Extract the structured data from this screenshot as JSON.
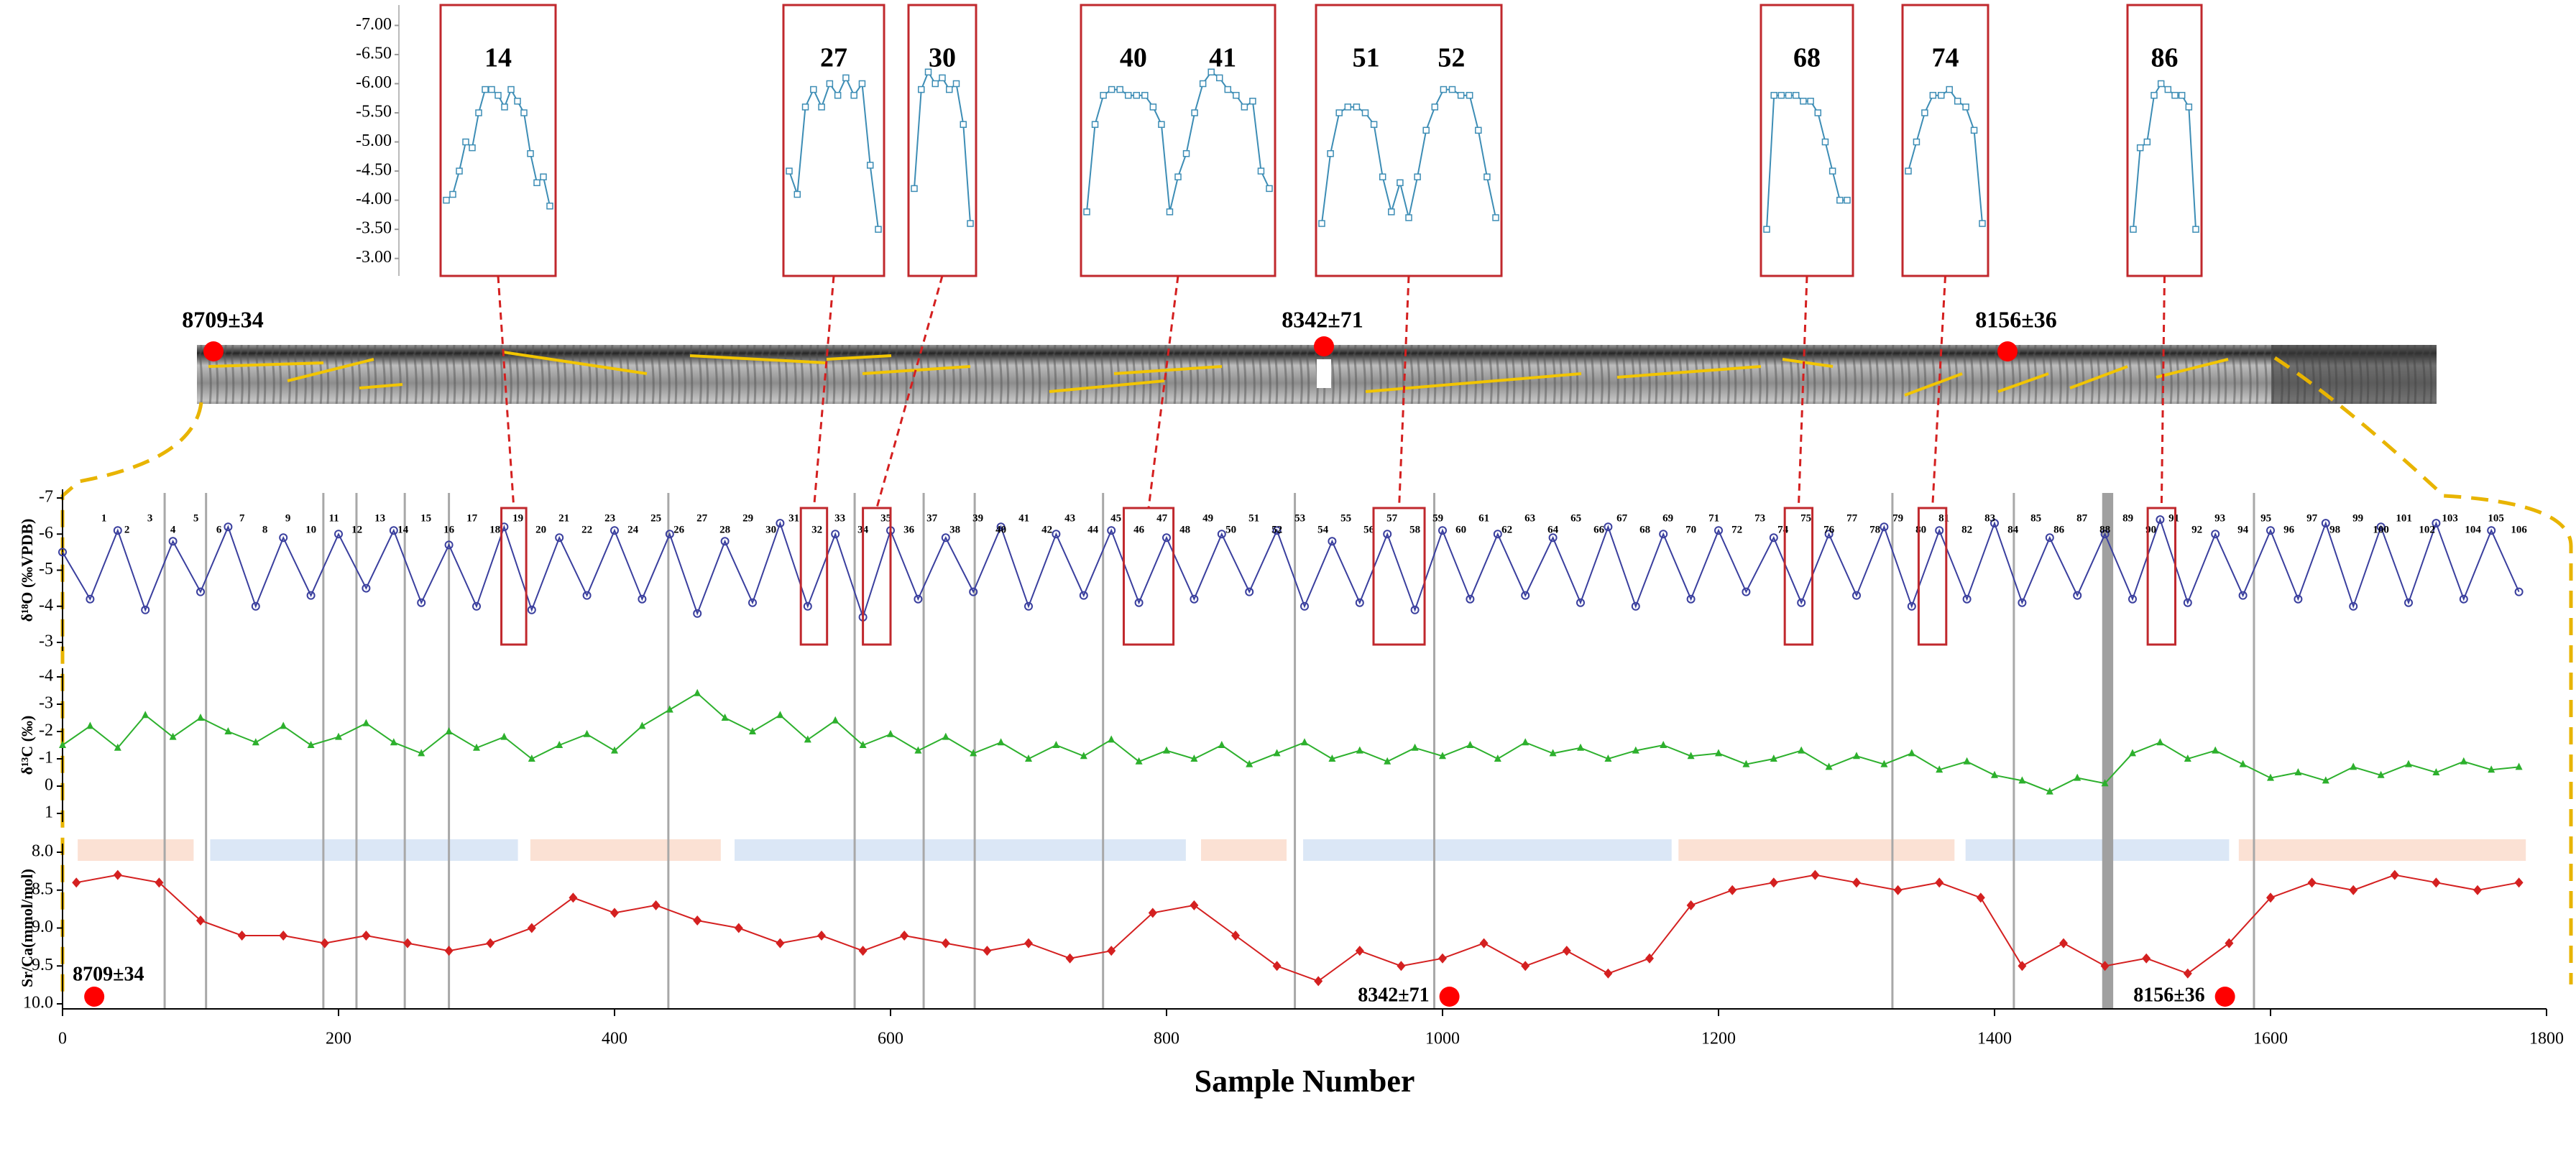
{
  "chart_data": [
    {
      "type": "line",
      "ylabel": "δ¹⁸O (‰VPDB)",
      "ylim": [
        -7,
        -3
      ],
      "y_inverted": true,
      "yticks": [
        -7,
        -6,
        -5,
        -4,
        -3
      ],
      "series": [
        {
          "color": "#3a3f9e",
          "marker": "circle",
          "x": [
            0,
            20,
            40,
            60,
            80,
            100,
            120,
            140,
            160,
            180,
            200,
            220,
            240,
            260,
            280,
            300,
            320,
            340,
            360,
            380,
            400,
            420,
            440,
            460,
            480,
            500,
            520,
            540,
            560,
            580,
            600,
            620,
            640,
            660,
            680,
            700,
            720,
            740,
            760,
            780,
            800,
            820,
            840,
            860,
            880,
            900,
            920,
            940,
            960,
            980,
            1000,
            1020,
            1040,
            1060,
            1080,
            1100,
            1120,
            1140,
            1160,
            1180,
            1200,
            1220,
            1240,
            1260,
            1280,
            1300,
            1320,
            1340,
            1360,
            1380,
            1400,
            1420,
            1440,
            1460,
            1480,
            1500,
            1520,
            1540,
            1560,
            1580,
            1600,
            1620,
            1640,
            1660,
            1680,
            1700,
            1720,
            1740,
            1760,
            1780
          ],
          "values": [
            -5.5,
            -4.2,
            -6.1,
            -3.9,
            -5.8,
            -4.4,
            -6.2,
            -4.0,
            -5.9,
            -4.3,
            -6.0,
            -4.5,
            -6.1,
            -4.1,
            -5.7,
            -4.0,
            -6.2,
            -3.9,
            -5.9,
            -4.3,
            -6.1,
            -4.2,
            -6.0,
            -3.8,
            -5.8,
            -4.1,
            -6.3,
            -4.0,
            -6.0,
            -3.7,
            -6.1,
            -4.2,
            -5.9,
            -4.4,
            -6.2,
            -4.0,
            -6.0,
            -4.3,
            -6.1,
            -4.1,
            -5.9,
            -4.2,
            -6.0,
            -4.4,
            -6.1,
            -4.0,
            -5.8,
            -4.1,
            -6.0,
            -3.9,
            -6.1,
            -4.2,
            -6.0,
            -4.3,
            -5.9,
            -4.1,
            -6.2,
            -4.0,
            -6.0,
            -4.2,
            -6.1,
            -4.4,
            -5.9,
            -4.1,
            -6.0,
            -4.3,
            -6.2,
            -4.0,
            -6.1,
            -4.2,
            -6.3,
            -4.1,
            -5.9,
            -4.3,
            -6.0,
            -4.2,
            -6.4,
            -4.1,
            -6.0,
            -4.3,
            -6.1,
            -4.2,
            -6.3,
            -4.0,
            -6.2,
            -4.1,
            -6.3,
            -4.2,
            -6.1,
            -4.4
          ]
        }
      ],
      "band_labels": [
        "1",
        "2",
        "3",
        "4",
        "5",
        "6",
        "7",
        "8",
        "9",
        "10",
        "11",
        "12",
        "13",
        "14",
        "15",
        "16",
        "17",
        "18",
        "19",
        "20",
        "21",
        "22",
        "23",
        "24",
        "25",
        "26",
        "27",
        "28",
        "29",
        "30",
        "31",
        "32",
        "33",
        "34",
        "35",
        "36",
        "37",
        "38",
        "39",
        "40",
        "41",
        "42",
        "43",
        "44",
        "45",
        "46",
        "47",
        "48",
        "49",
        "50",
        "51",
        "52",
        "53",
        "54",
        "55",
        "56",
        "57",
        "58",
        "59",
        "60",
        "61",
        "62",
        "63",
        "64",
        "65",
        "66",
        "67",
        "68",
        "69",
        "70",
        "71",
        "72",
        "73",
        "74",
        "75",
        "76",
        "77",
        "78",
        "79",
        "80",
        "81",
        "82",
        "83",
        "84",
        "85",
        "86",
        "87",
        "88",
        "89",
        "90",
        "91",
        "92",
        "93",
        "94",
        "95",
        "96",
        "97",
        "98",
        "99",
        "100",
        "101",
        "102",
        "103",
        "104",
        "105",
        "106"
      ]
    },
    {
      "type": "line",
      "ylabel": "δ¹³C (‰)",
      "ylim": [
        -4,
        1
      ],
      "y_inverted": true,
      "yticks": [
        1,
        0,
        -1,
        -2,
        -3,
        -4
      ],
      "series": [
        {
          "color": "#2db02d",
          "marker": "triangle",
          "x": [
            0,
            20,
            40,
            60,
            80,
            100,
            120,
            140,
            160,
            180,
            200,
            220,
            240,
            260,
            280,
            300,
            320,
            340,
            360,
            380,
            400,
            420,
            440,
            460,
            480,
            500,
            520,
            540,
            560,
            580,
            600,
            620,
            640,
            660,
            680,
            700,
            720,
            740,
            760,
            780,
            800,
            820,
            840,
            860,
            880,
            900,
            920,
            940,
            960,
            980,
            1000,
            1020,
            1040,
            1060,
            1080,
            1100,
            1120,
            1140,
            1160,
            1180,
            1200,
            1220,
            1240,
            1260,
            1280,
            1300,
            1320,
            1340,
            1360,
            1380,
            1400,
            1420,
            1440,
            1460,
            1480,
            1500,
            1520,
            1540,
            1560,
            1580,
            1600,
            1620,
            1640,
            1660,
            1680,
            1700,
            1720,
            1740,
            1760,
            1780
          ],
          "values": [
            -1.5,
            -2.2,
            -1.4,
            -2.6,
            -1.8,
            -2.5,
            -2.0,
            -1.6,
            -2.2,
            -1.5,
            -1.8,
            -2.3,
            -1.6,
            -1.2,
            -2.0,
            -1.4,
            -1.8,
            -1.0,
            -1.5,
            -1.9,
            -1.3,
            -2.2,
            -2.8,
            -3.4,
            -2.5,
            -2.0,
            -2.6,
            -1.7,
            -2.4,
            -1.5,
            -1.9,
            -1.3,
            -1.8,
            -1.2,
            -1.6,
            -1.0,
            -1.5,
            -1.1,
            -1.7,
            -0.9,
            -1.3,
            -1.0,
            -1.5,
            -0.8,
            -1.2,
            -1.6,
            -1.0,
            -1.3,
            -0.9,
            -1.4,
            -1.1,
            -1.5,
            -1.0,
            -1.6,
            -1.2,
            -1.4,
            -1.0,
            -1.3,
            -1.5,
            -1.1,
            -1.2,
            -0.8,
            -1.0,
            -1.3,
            -0.7,
            -1.1,
            -0.8,
            -1.2,
            -0.6,
            -0.9,
            -0.4,
            -0.2,
            0.2,
            -0.3,
            -0.1,
            -1.2,
            -1.6,
            -1.0,
            -1.3,
            -0.8,
            -0.3,
            -0.5,
            -0.2,
            -0.7,
            -0.4,
            -0.8,
            -0.5,
            -0.9,
            -0.6,
            -0.7
          ]
        }
      ]
    },
    {
      "type": "line",
      "ylabel": "Sr/Ca(mmol/mol)",
      "ylim": [
        8,
        10
      ],
      "y_inverted": true,
      "yticks": [
        {
          "value": 8,
          "label": "8.0"
        },
        8.5,
        {
          "value": 9,
          "label": "9.0"
        },
        9.5,
        {
          "value": 10,
          "label": "10.0"
        }
      ],
      "xlabel": "Sample Number",
      "xlim": [
        0,
        1800
      ],
      "xticks": [
        0,
        200,
        400,
        600,
        800,
        1000,
        1200,
        1400,
        1600,
        1800
      ],
      "series": [
        {
          "color": "#d42020",
          "marker": "diamond",
          "x": [
            10,
            40,
            70,
            100,
            130,
            160,
            190,
            220,
            250,
            280,
            310,
            340,
            370,
            400,
            430,
            460,
            490,
            520,
            550,
            580,
            610,
            640,
            670,
            700,
            730,
            760,
            790,
            820,
            850,
            880,
            910,
            940,
            970,
            1000,
            1030,
            1060,
            1090,
            1120,
            1150,
            1180,
            1210,
            1240,
            1270,
            1300,
            1330,
            1360,
            1390,
            1420,
            1450,
            1480,
            1510,
            1540,
            1570,
            1600,
            1630,
            1660,
            1690,
            1720,
            1750,
            1780
          ],
          "values": [
            8.4,
            8.3,
            8.4,
            8.9,
            9.1,
            9.1,
            9.2,
            9.1,
            9.2,
            9.3,
            9.2,
            9.0,
            8.6,
            8.8,
            8.7,
            8.9,
            9.0,
            9.2,
            9.1,
            9.3,
            9.1,
            9.2,
            9.3,
            9.2,
            9.4,
            9.3,
            8.8,
            8.7,
            9.1,
            9.5,
            9.7,
            9.3,
            9.5,
            9.4,
            9.2,
            9.5,
            9.3,
            9.6,
            9.4,
            8.7,
            8.5,
            8.4,
            8.3,
            8.4,
            8.5,
            8.4,
            8.6,
            9.5,
            9.2,
            9.5,
            9.4,
            9.6,
            9.2,
            8.6,
            8.4,
            8.5,
            8.3,
            8.4,
            8.5,
            8.4
          ]
        }
      ],
      "ages": [
        {
          "label": "8709±34",
          "x": 23
        },
        {
          "label": "8342±71",
          "x": 1005
        },
        {
          "label": "8156±36",
          "x": 1567
        }
      ]
    }
  ],
  "dividers": [
    74,
    104,
    189,
    213,
    248,
    280,
    439,
    574,
    624,
    661,
    754,
    893,
    994,
    1326,
    1414,
    1588
  ],
  "thick_divider": [
    1478,
    1486
  ],
  "phases": [
    {
      "start": 11,
      "end": 95,
      "color": "#fbe1d4"
    },
    {
      "start": 107,
      "end": 330,
      "color": "#dbe7f6"
    },
    {
      "start": 339,
      "end": 477,
      "color": "#fbe1d4"
    },
    {
      "start": 487,
      "end": 814,
      "color": "#dbe7f6"
    },
    {
      "start": 825,
      "end": 887,
      "color": "#fbe1d4"
    },
    {
      "start": 899,
      "end": 1166,
      "color": "#dbe7f6"
    },
    {
      "start": 1171,
      "end": 1371,
      "color": "#fbe1d4"
    },
    {
      "start": 1379,
      "end": 1570,
      "color": "#dbe7f6"
    },
    {
      "start": 1577,
      "end": 1785,
      "color": "#fbe1d4"
    }
  ],
  "inset_ylim": [
    -7.35,
    -2.7
  ],
  "inset_yticks": [
    {
      "value": -7,
      "label": "-7.00"
    },
    {
      "value": -6.5,
      "label": "-6.50"
    },
    {
      "value": -6,
      "label": "-6.00"
    },
    {
      "value": -5.5,
      "label": "-5.50"
    },
    {
      "value": -5,
      "label": "-5.00"
    },
    {
      "value": -4.5,
      "label": "-4.50"
    },
    {
      "value": -4,
      "label": "-4.00"
    },
    {
      "value": -3.5,
      "label": "-3.50"
    },
    {
      "value": -3,
      "label": "-3.00"
    }
  ],
  "inset_color": "#3d8db5",
  "insets": [
    {
      "labels": [
        "14"
      ],
      "window": [
        318,
        336
      ],
      "values": [
        -4.0,
        -4.1,
        -4.5,
        -5.0,
        -4.9,
        -5.5,
        -5.9,
        -5.9,
        -5.8,
        -5.6,
        -5.9,
        -5.7,
        -5.5,
        -4.8,
        -4.3,
        -4.4,
        -3.9
      ]
    },
    {
      "labels": [
        "27"
      ],
      "window": [
        535,
        554
      ],
      "values": [
        -4.5,
        -4.1,
        -5.6,
        -5.9,
        -5.6,
        -6.0,
        -5.8,
        -6.1,
        -5.8,
        -6.0,
        -4.6,
        -3.5
      ]
    },
    {
      "labels": [
        "30"
      ],
      "window": [
        580,
        600
      ],
      "values": [
        -4.2,
        -5.9,
        -6.2,
        -6.0,
        -6.1,
        -5.9,
        -6.0,
        -5.3,
        -3.6
      ]
    },
    {
      "labels": [
        "40",
        "41"
      ],
      "window": [
        769,
        805
      ],
      "values": [
        -3.8,
        -5.3,
        -5.8,
        -5.9,
        -5.9,
        -5.8,
        -5.8,
        -5.8,
        -5.6,
        -5.3,
        -3.8,
        -4.4,
        -4.8,
        -5.5,
        -6.0,
        -6.2,
        -6.1,
        -5.9,
        -5.8,
        -5.6,
        -5.7,
        -4.5,
        -4.2
      ]
    },
    {
      "labels": [
        "51",
        "52"
      ],
      "window": [
        950,
        987
      ],
      "values": [
        -3.6,
        -4.8,
        -5.5,
        -5.6,
        -5.6,
        -5.5,
        -5.3,
        -4.4,
        -3.8,
        -4.3,
        -3.7,
        -4.4,
        -5.2,
        -5.6,
        -5.9,
        -5.9,
        -5.8,
        -5.8,
        -5.2,
        -4.4,
        -3.7
      ]
    },
    {
      "labels": [
        "68"
      ],
      "window": [
        1248,
        1268
      ],
      "values": [
        -3.5,
        -5.8,
        -5.8,
        -5.8,
        -5.8,
        -5.7,
        -5.7,
        -5.5,
        -5.0,
        -4.5,
        -4.0,
        -4.0
      ]
    },
    {
      "labels": [
        "74"
      ],
      "window": [
        1345,
        1365
      ],
      "values": [
        -4.5,
        -5.0,
        -5.5,
        -5.8,
        -5.8,
        -5.9,
        -5.7,
        -5.6,
        -5.2,
        -3.6
      ]
    },
    {
      "labels": [
        "86"
      ],
      "window": [
        1511,
        1531
      ],
      "values": [
        -3.5,
        -4.9,
        -5.0,
        -5.8,
        -6.0,
        -5.9,
        -5.8,
        -5.8,
        -5.6,
        -3.5
      ]
    }
  ]
}
